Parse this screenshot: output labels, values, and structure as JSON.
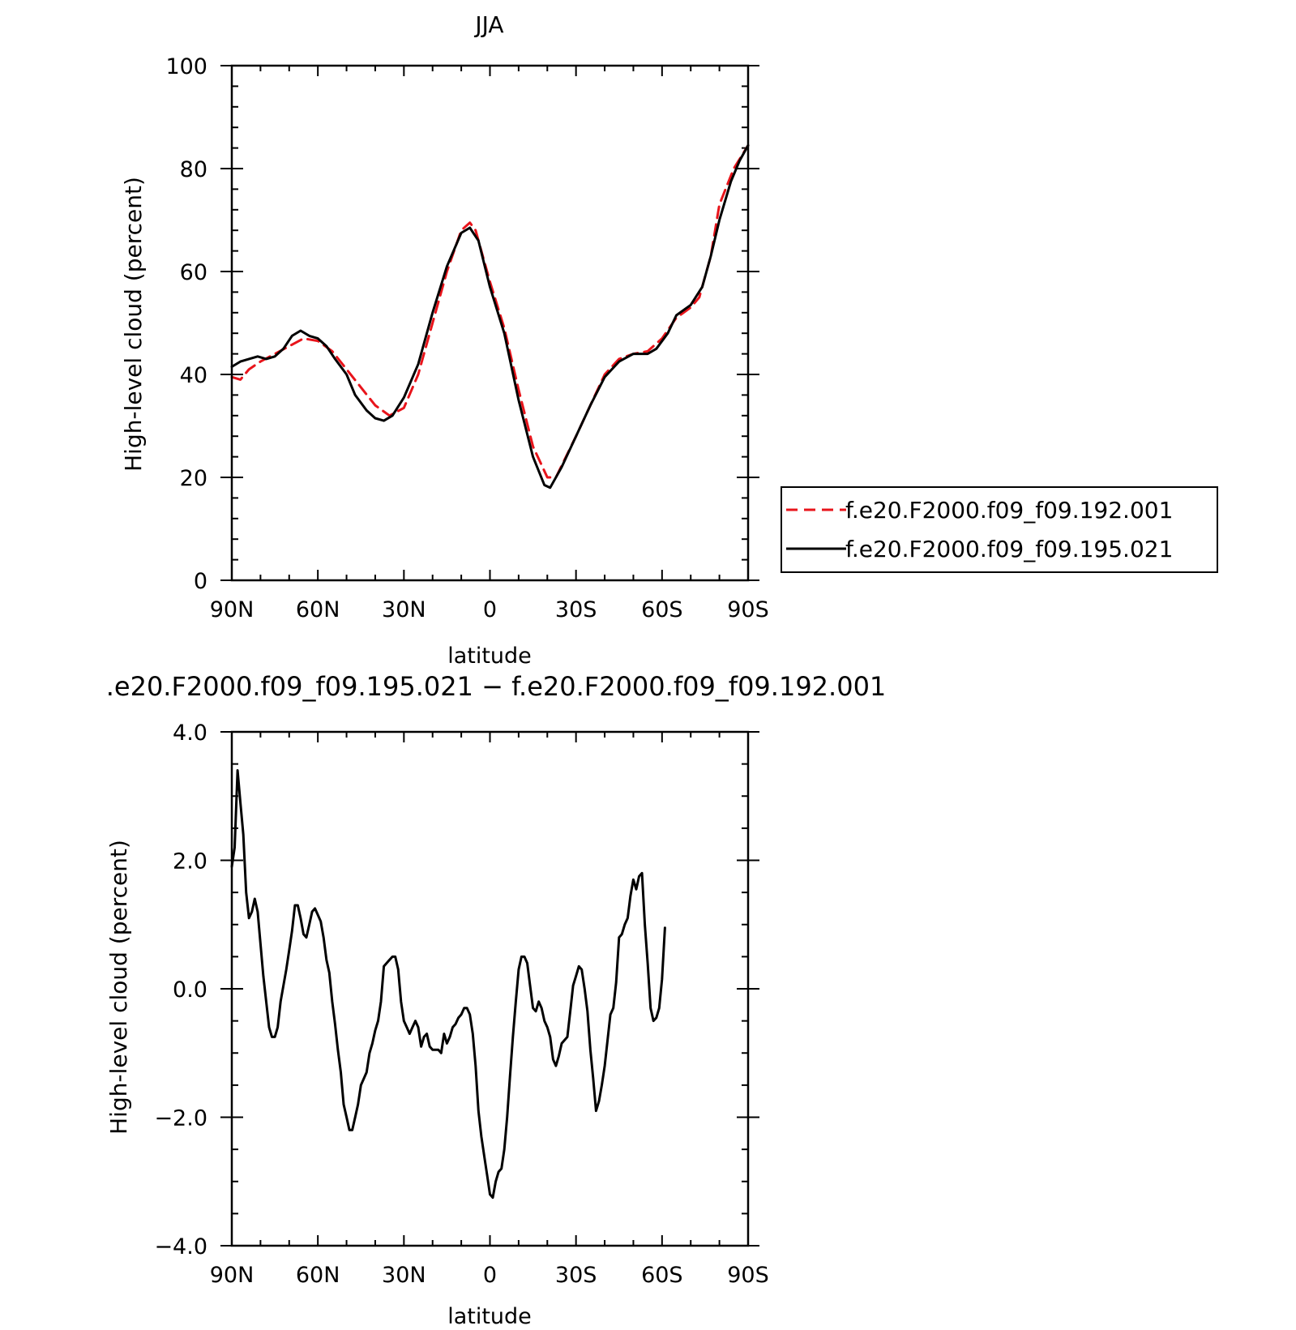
{
  "chart_data": [
    {
      "type": "line",
      "title": "JJA",
      "xlabel": "latitude",
      "ylabel": "High-level cloud (percent)",
      "xlim": [
        90,
        -90
      ],
      "ylim": [
        0,
        100
      ],
      "x_ticks": [
        {
          "value": 90,
          "label": "90N"
        },
        {
          "value": 60,
          "label": "60N"
        },
        {
          "value": 30,
          "label": "30N"
        },
        {
          "value": 0,
          "label": "0"
        },
        {
          "value": -30,
          "label": "30S"
        },
        {
          "value": -60,
          "label": "60S"
        },
        {
          "value": -90,
          "label": "90S"
        }
      ],
      "y_ticks": [
        {
          "value": 0,
          "label": "0"
        },
        {
          "value": 20,
          "label": "20"
        },
        {
          "value": 40,
          "label": "40"
        },
        {
          "value": 60,
          "label": "60"
        },
        {
          "value": 80,
          "label": "80"
        },
        {
          "value": 100,
          "label": "100"
        }
      ],
      "legend_position": "right",
      "series": [
        {
          "name": "f.e20.F2000.f09_f09.192.001",
          "color": "#e8141b",
          "style": "dashed",
          "points": [
            [
              90,
              39.5
            ],
            [
              87,
              39
            ],
            [
              84,
              41
            ],
            [
              80,
              42.5
            ],
            [
              75,
              44
            ],
            [
              70,
              45.5
            ],
            [
              65,
              47
            ],
            [
              60,
              46.5
            ],
            [
              55,
              44.5
            ],
            [
              50,
              41
            ],
            [
              45,
              37.5
            ],
            [
              40,
              34
            ],
            [
              35,
              32
            ],
            [
              30,
              33.5
            ],
            [
              25,
              40
            ],
            [
              20,
              50
            ],
            [
              15,
              60
            ],
            [
              10,
              68
            ],
            [
              7,
              69.5
            ],
            [
              5,
              68
            ],
            [
              0,
              58
            ],
            [
              -5,
              49
            ],
            [
              -10,
              37
            ],
            [
              -15,
              26
            ],
            [
              -20,
              20
            ],
            [
              -23,
              20
            ],
            [
              -30,
              28
            ],
            [
              -35,
              34
            ],
            [
              -40,
              40
            ],
            [
              -45,
              43
            ],
            [
              -50,
              44
            ],
            [
              -55,
              44.5
            ],
            [
              -60,
              47
            ],
            [
              -65,
              51
            ],
            [
              -70,
              53
            ],
            [
              -73,
              55
            ],
            [
              -77,
              63
            ],
            [
              -80,
              73
            ],
            [
              -85,
              80
            ],
            [
              -90,
              84.5
            ]
          ]
        },
        {
          "name": "f.e20.F2000.f09_f09.195.021",
          "color": "#000000",
          "style": "solid",
          "points": [
            [
              90,
              41.5
            ],
            [
              87,
              42.5
            ],
            [
              84,
              43
            ],
            [
              81,
              43.5
            ],
            [
              78,
              43
            ],
            [
              75,
              43.5
            ],
            [
              72,
              45
            ],
            [
              69,
              47.5
            ],
            [
              66,
              48.5
            ],
            [
              63,
              47.5
            ],
            [
              60,
              47
            ],
            [
              57,
              45.5
            ],
            [
              54,
              43
            ],
            [
              50,
              40
            ],
            [
              47,
              36
            ],
            [
              43,
              33
            ],
            [
              40,
              31.5
            ],
            [
              37,
              31
            ],
            [
              34,
              32
            ],
            [
              30,
              35.5
            ],
            [
              25,
              42
            ],
            [
              20,
              52
            ],
            [
              15,
              61
            ],
            [
              10,
              67.5
            ],
            [
              7,
              68.5
            ],
            [
              4,
              66
            ],
            [
              0,
              57
            ],
            [
              -5,
              48
            ],
            [
              -10,
              35
            ],
            [
              -15,
              24
            ],
            [
              -19,
              18.5
            ],
            [
              -21,
              18
            ],
            [
              -25,
              22
            ],
            [
              -30,
              28
            ],
            [
              -35,
              34
            ],
            [
              -40,
              39.5
            ],
            [
              -45,
              42.5
            ],
            [
              -50,
              44
            ],
            [
              -55,
              44
            ],
            [
              -58,
              45
            ],
            [
              -62,
              48
            ],
            [
              -65,
              51.5
            ],
            [
              -70,
              53.5
            ],
            [
              -74,
              57
            ],
            [
              -77,
              63
            ],
            [
              -80,
              70
            ],
            [
              -84,
              77.5
            ],
            [
              -87,
              81.5
            ],
            [
              -90,
              84.5
            ]
          ]
        }
      ]
    },
    {
      "type": "line",
      "title": ".e20.F2000.f09_f09.195.021 − f.e20.F2000.f09_f09.192.001",
      "xlabel": "latitude",
      "ylabel": "High-level cloud (percent)",
      "xlim": [
        90,
        -90
      ],
      "ylim": [
        -4,
        4
      ],
      "x_ticks": [
        {
          "value": 90,
          "label": "90N"
        },
        {
          "value": 60,
          "label": "60N"
        },
        {
          "value": 30,
          "label": "30N"
        },
        {
          "value": 0,
          "label": "0"
        },
        {
          "value": -30,
          "label": "30S"
        },
        {
          "value": -60,
          "label": "60S"
        },
        {
          "value": -90,
          "label": "90S"
        }
      ],
      "y_ticks": [
        {
          "value": -4,
          "label": "−4.0"
        },
        {
          "value": -2,
          "label": "−2.0"
        },
        {
          "value": 0,
          "label": "0.0"
        },
        {
          "value": 2,
          "label": "2.0"
        },
        {
          "value": 4,
          "label": "4.0"
        }
      ],
      "series": [
        {
          "color": "#000000",
          "style": "solid",
          "points": [
            [
              90,
              1.9
            ],
            [
              89,
              2.2
            ],
            [
              88,
              3.4
            ],
            [
              87,
              2.9
            ],
            [
              86,
              2.4
            ],
            [
              85,
              1.5
            ],
            [
              84,
              1.1
            ],
            [
              83,
              1.2
            ],
            [
              82,
              1.4
            ],
            [
              81,
              1.2
            ],
            [
              79,
              0.2
            ],
            [
              77,
              -0.6
            ],
            [
              76,
              -0.75
            ],
            [
              75,
              -0.75
            ],
            [
              74,
              -0.6
            ],
            [
              73,
              -0.2
            ],
            [
              71,
              0.3
            ],
            [
              70,
              0.6
            ],
            [
              69,
              0.9
            ],
            [
              68,
              1.3
            ],
            [
              67,
              1.3
            ],
            [
              66,
              1.1
            ],
            [
              65,
              0.85
            ],
            [
              64,
              0.8
            ],
            [
              63,
              1.0
            ],
            [
              62,
              1.2
            ],
            [
              61,
              1.25
            ],
            [
              60,
              1.15
            ],
            [
              59,
              1.05
            ],
            [
              58,
              0.8
            ],
            [
              57,
              0.45
            ],
            [
              56,
              0.25
            ],
            [
              55,
              -0.2
            ],
            [
              54,
              -0.55
            ],
            [
              53,
              -0.95
            ],
            [
              52,
              -1.3
            ],
            [
              51,
              -1.8
            ],
            [
              50,
              -2.0
            ],
            [
              49,
              -2.2
            ],
            [
              48,
              -2.2
            ],
            [
              47,
              -2.0
            ],
            [
              46,
              -1.8
            ],
            [
              45,
              -1.5
            ],
            [
              44,
              -1.4
            ],
            [
              43,
              -1.3
            ],
            [
              42,
              -1.0
            ],
            [
              41,
              -0.85
            ],
            [
              40,
              -0.65
            ],
            [
              39,
              -0.5
            ],
            [
              38,
              -0.2
            ],
            [
              37,
              0.35
            ],
            [
              36,
              0.4
            ],
            [
              35,
              0.45
            ],
            [
              34,
              0.5
            ],
            [
              33,
              0.5
            ],
            [
              32,
              0.3
            ],
            [
              31,
              -0.2
            ],
            [
              30,
              -0.5
            ],
            [
              29,
              -0.6
            ],
            [
              28,
              -0.7
            ],
            [
              27,
              -0.6
            ],
            [
              26,
              -0.5
            ],
            [
              25,
              -0.6
            ],
            [
              24,
              -0.9
            ],
            [
              23,
              -0.75
            ],
            [
              22,
              -0.7
            ],
            [
              21,
              -0.9
            ],
            [
              20,
              -0.95
            ],
            [
              19,
              -0.95
            ],
            [
              18,
              -0.95
            ],
            [
              17,
              -1.0
            ],
            [
              16,
              -0.7
            ],
            [
              15,
              -0.85
            ],
            [
              14,
              -0.75
            ],
            [
              13,
              -0.6
            ],
            [
              12,
              -0.55
            ],
            [
              11,
              -0.45
            ],
            [
              10,
              -0.4
            ],
            [
              9,
              -0.3
            ],
            [
              8,
              -0.3
            ],
            [
              7,
              -0.4
            ],
            [
              6,
              -0.7
            ],
            [
              5,
              -1.2
            ],
            [
              4,
              -1.9
            ],
            [
              3,
              -2.3
            ],
            [
              2,
              -2.6
            ],
            [
              1,
              -2.9
            ],
            [
              0,
              -3.2
            ],
            [
              -1,
              -3.25
            ],
            [
              -2,
              -3.0
            ],
            [
              -3,
              -2.85
            ],
            [
              -4,
              -2.8
            ],
            [
              -5,
              -2.5
            ],
            [
              -6,
              -2.0
            ],
            [
              -7,
              -1.35
            ],
            [
              -8,
              -0.75
            ],
            [
              -9,
              -0.2
            ],
            [
              -10,
              0.3
            ],
            [
              -11,
              0.5
            ],
            [
              -12,
              0.5
            ],
            [
              -13,
              0.4
            ],
            [
              -14,
              0.05
            ],
            [
              -15,
              -0.3
            ],
            [
              -16,
              -0.35
            ],
            [
              -17,
              -0.2
            ],
            [
              -18,
              -0.3
            ],
            [
              -19,
              -0.5
            ],
            [
              -20,
              -0.6
            ],
            [
              -21,
              -0.75
            ],
            [
              -22,
              -1.1
            ],
            [
              -23,
              -1.2
            ],
            [
              -24,
              -1.05
            ],
            [
              -25,
              -0.85
            ],
            [
              -26,
              -0.8
            ],
            [
              -27,
              -0.75
            ],
            [
              -28,
              -0.35
            ],
            [
              -29,
              0.05
            ],
            [
              -30,
              0.2
            ],
            [
              -31,
              0.35
            ],
            [
              -32,
              0.3
            ],
            [
              -33,
              0.0
            ],
            [
              -34,
              -0.35
            ],
            [
              -35,
              -0.95
            ],
            [
              -36,
              -1.4
            ],
            [
              -37,
              -1.9
            ],
            [
              -38,
              -1.75
            ],
            [
              -39,
              -1.5
            ],
            [
              -40,
              -1.2
            ],
            [
              -41,
              -0.8
            ],
            [
              -42,
              -0.4
            ],
            [
              -43,
              -0.3
            ],
            [
              -44,
              0.1
            ],
            [
              -45,
              0.8
            ],
            [
              -46,
              0.85
            ],
            [
              -47,
              1.0
            ],
            [
              -48,
              1.1
            ],
            [
              -49,
              1.45
            ],
            [
              -50,
              1.7
            ],
            [
              -51,
              1.55
            ],
            [
              -52,
              1.75
            ],
            [
              -53,
              1.8
            ],
            [
              -54,
              1.0
            ],
            [
              -55,
              0.4
            ],
            [
              -56,
              -0.3
            ],
            [
              -57,
              -0.5
            ],
            [
              -58,
              -0.45
            ],
            [
              -59,
              -0.3
            ],
            [
              -60,
              0.15
            ],
            [
              -61,
              0.95
            ]
          ]
        }
      ]
    }
  ]
}
